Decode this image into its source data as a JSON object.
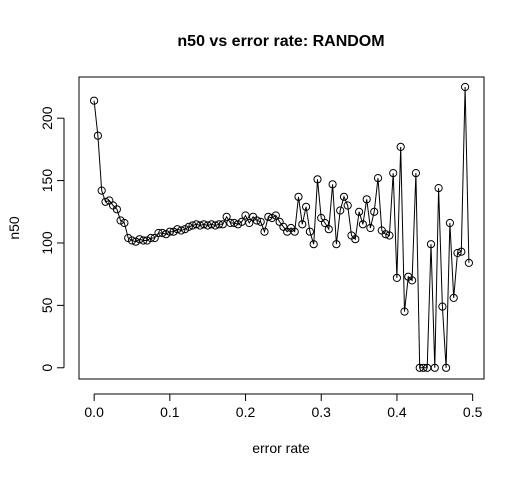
{
  "chart_data": {
    "type": "line",
    "title": "n50 vs error rate: RANDOM",
    "xlabel": "error rate",
    "ylabel": "n50",
    "xlim": [
      -0.02,
      0.515
    ],
    "ylim": [
      -9,
      233
    ],
    "x_ticks": [
      {
        "value": 0.0,
        "label": "0.0"
      },
      {
        "value": 0.1,
        "label": "0.1"
      },
      {
        "value": 0.2,
        "label": "0.2"
      },
      {
        "value": 0.3,
        "label": "0.3"
      },
      {
        "value": 0.4,
        "label": "0.4"
      },
      {
        "value": 0.5,
        "label": "0.5"
      }
    ],
    "y_ticks": [
      {
        "value": 0,
        "label": "0"
      },
      {
        "value": 50,
        "label": "50"
      },
      {
        "value": 100,
        "label": "100"
      },
      {
        "value": 150,
        "label": "150"
      },
      {
        "value": 200,
        "label": "200"
      }
    ],
    "grid": false,
    "points": "both",
    "x": [
      0.0,
      0.005,
      0.01,
      0.015,
      0.02,
      0.025,
      0.03,
      0.035,
      0.04,
      0.045,
      0.05,
      0.055,
      0.06,
      0.065,
      0.07,
      0.075,
      0.08,
      0.085,
      0.09,
      0.095,
      0.1,
      0.105,
      0.11,
      0.115,
      0.12,
      0.125,
      0.13,
      0.135,
      0.14,
      0.145,
      0.15,
      0.155,
      0.16,
      0.165,
      0.17,
      0.175,
      0.18,
      0.185,
      0.19,
      0.195,
      0.2,
      0.205,
      0.21,
      0.215,
      0.22,
      0.225,
      0.23,
      0.235,
      0.24,
      0.245,
      0.25,
      0.255,
      0.26,
      0.265,
      0.27,
      0.275,
      0.28,
      0.285,
      0.29,
      0.295,
      0.3,
      0.305,
      0.31,
      0.315,
      0.32,
      0.325,
      0.33,
      0.335,
      0.34,
      0.345,
      0.35,
      0.355,
      0.36,
      0.365,
      0.37,
      0.375,
      0.38,
      0.385,
      0.39,
      0.395,
      0.4,
      0.405,
      0.41,
      0.415,
      0.42,
      0.425,
      0.43,
      0.435,
      0.44,
      0.445,
      0.45,
      0.455,
      0.46,
      0.465,
      0.47,
      0.475,
      0.48,
      0.485,
      0.49,
      0.495
    ],
    "y": [
      214,
      186,
      142,
      133,
      134,
      130,
      127,
      118,
      116,
      104,
      102,
      101,
      103,
      102,
      102,
      104,
      104,
      108,
      108,
      107,
      109,
      109,
      111,
      110,
      111,
      113,
      114,
      115,
      114,
      115,
      114,
      115,
      114,
      115,
      115,
      121,
      116,
      116,
      115,
      117,
      122,
      116,
      121,
      118,
      117,
      109,
      121,
      120,
      122,
      117,
      113,
      109,
      112,
      109,
      137,
      115,
      129,
      109,
      99,
      151,
      120,
      116,
      111,
      147,
      99,
      126,
      137,
      130,
      106,
      103,
      125,
      115,
      135,
      112,
      125,
      152,
      110,
      107,
      106,
      156,
      72,
      177,
      45,
      73,
      70,
      156,
      0,
      0,
      0,
      99,
      0,
      144,
      49,
      0,
      116,
      56,
      92,
      93,
      225,
      84
    ]
  }
}
